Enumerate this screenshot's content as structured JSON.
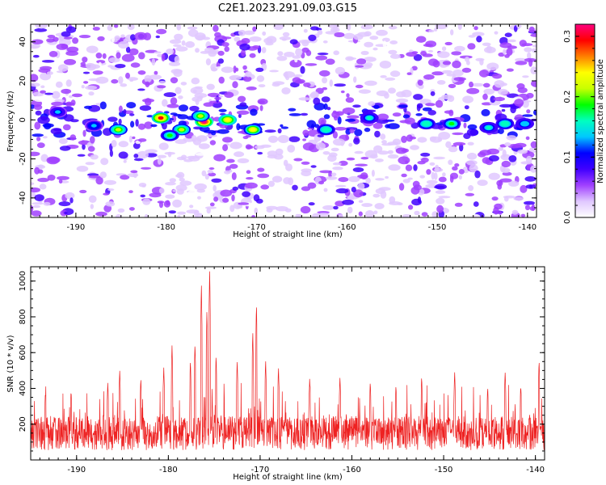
{
  "title": "C2E1.2023.291.09.03.G15",
  "chart_data": [
    {
      "type": "heatmap",
      "xlabel": "Height of straight line (km)",
      "ylabel": "Frequency (Hz)",
      "xlim": [
        -195,
        -139
      ],
      "ylim": [
        -50,
        49
      ],
      "xticks": [
        -190,
        -180,
        -170,
        -160,
        -150,
        -140
      ],
      "yticks": [
        -40,
        -20,
        0,
        20,
        40
      ],
      "colorbar": {
        "label": "Normalized spectral amplitude",
        "range": [
          0.0,
          0.32
        ],
        "ticks": [
          0.0,
          0.1,
          0.2,
          0.3
        ],
        "colors": [
          "#ffffff",
          "#e0c8ff",
          "#a040ff",
          "#4000ff",
          "#0000ff",
          "#00c8ff",
          "#00ffc0",
          "#00ff00",
          "#c8ff00",
          "#ffff00",
          "#ff8000",
          "#ff0000",
          "#ff0080"
        ]
      },
      "band": {
        "center_hz": 0,
        "halfwidth_hz": 8
      },
      "hotspots": [
        {
          "x": -180.6,
          "y": 1,
          "value": 0.29
        },
        {
          "x": -175.8,
          "y": -1,
          "value": 0.32
        },
        {
          "x": -178.3,
          "y": -5,
          "value": 0.22
        },
        {
          "x": -173.2,
          "y": 0,
          "value": 0.25
        },
        {
          "x": -170.4,
          "y": -5,
          "value": 0.24
        },
        {
          "x": -185.3,
          "y": -5,
          "value": 0.2
        },
        {
          "x": -179.6,
          "y": -8,
          "value": 0.18
        },
        {
          "x": -176.2,
          "y": 2,
          "value": 0.2
        },
        {
          "x": -162.3,
          "y": -5,
          "value": 0.17
        },
        {
          "x": -151.2,
          "y": -2,
          "value": 0.17
        },
        {
          "x": -148.4,
          "y": -2,
          "value": 0.18
        },
        {
          "x": -142.5,
          "y": -2,
          "value": 0.17
        },
        {
          "x": -157.5,
          "y": 1,
          "value": 0.15
        },
        {
          "x": -144.3,
          "y": -4,
          "value": 0.15
        },
        {
          "x": -140.3,
          "y": -2,
          "value": 0.14
        },
        {
          "x": -192.0,
          "y": 4,
          "value": 0.12
        },
        {
          "x": -188.0,
          "y": -3,
          "value": 0.13
        }
      ]
    },
    {
      "type": "line",
      "xlabel": "Height of straight line (km)",
      "ylabel": "SNR (10 * v/v)",
      "xlim": [
        -195,
        -139
      ],
      "ylim": [
        0,
        1080
      ],
      "xticks": [
        -190,
        -180,
        -170,
        -160,
        -150,
        -140
      ],
      "yticks": [
        200,
        400,
        600,
        800,
        1000
      ],
      "color": "#ee2222",
      "baseline": 150,
      "peaks": [
        {
          "x": -175.5,
          "value": 1080
        },
        {
          "x": -176.4,
          "value": 990
        },
        {
          "x": -175.8,
          "value": 840
        },
        {
          "x": -170.4,
          "value": 880
        },
        {
          "x": -170.8,
          "value": 720
        },
        {
          "x": -177.1,
          "value": 660
        },
        {
          "x": -177.6,
          "value": 560
        },
        {
          "x": -179.6,
          "value": 640
        },
        {
          "x": -180.5,
          "value": 520
        },
        {
          "x": -174.8,
          "value": 590
        },
        {
          "x": -172.5,
          "value": 560
        },
        {
          "x": -185.3,
          "value": 510
        },
        {
          "x": -183.0,
          "value": 460
        },
        {
          "x": -186.6,
          "value": 430
        },
        {
          "x": -169.4,
          "value": 560
        },
        {
          "x": -168.0,
          "value": 520
        },
        {
          "x": -164.6,
          "value": 460
        },
        {
          "x": -161.3,
          "value": 470
        },
        {
          "x": -158.0,
          "value": 440
        },
        {
          "x": -155.2,
          "value": 420
        },
        {
          "x": -152.4,
          "value": 470
        },
        {
          "x": -148.8,
          "value": 490
        },
        {
          "x": -145.2,
          "value": 410
        },
        {
          "x": -143.3,
          "value": 500
        },
        {
          "x": -141.6,
          "value": 420
        },
        {
          "x": -139.6,
          "value": 560
        },
        {
          "x": -190.6,
          "value": 390
        },
        {
          "x": -193.4,
          "value": 380
        }
      ]
    }
  ]
}
